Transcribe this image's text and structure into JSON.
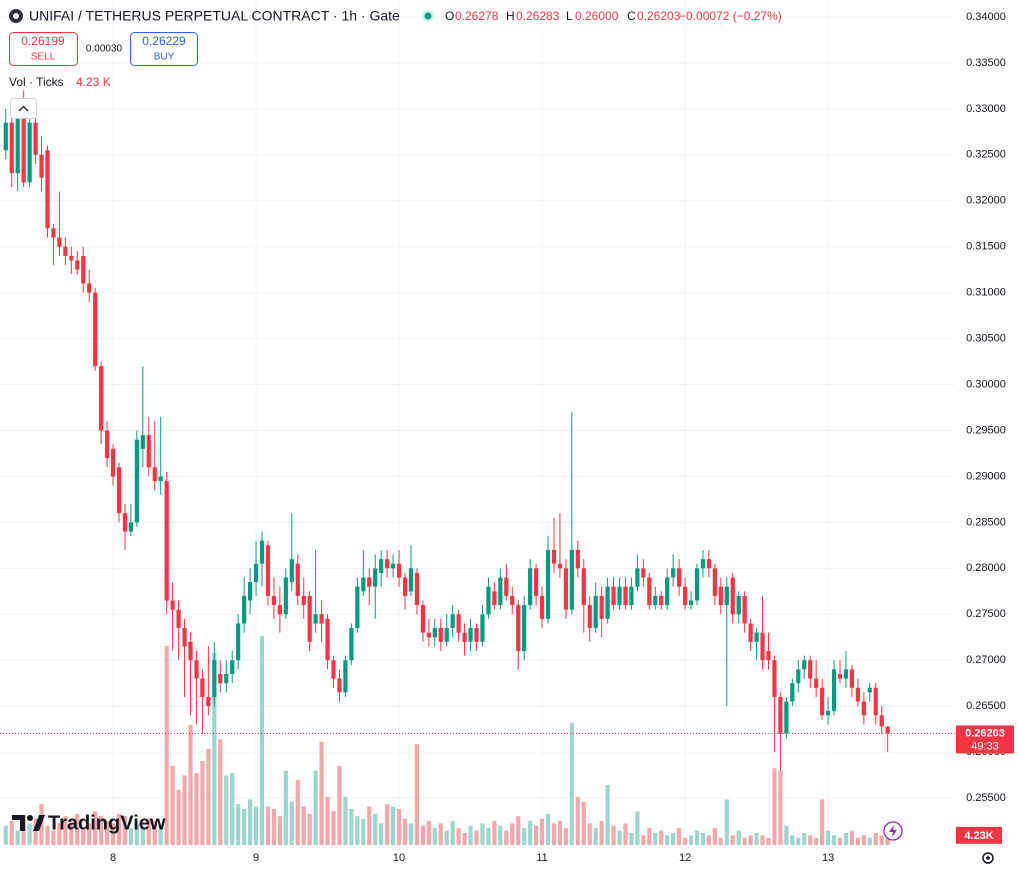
{
  "header": {
    "title": "UNIFAI / TETHERUS PERPETUAL CONTRACT · 1h · Gate",
    "o_label": "O",
    "o": "0.26278",
    "h_label": "H",
    "h": "0.26283",
    "l_label": "L",
    "l": "0.26000",
    "c_label": "C",
    "c": "0.26203",
    "change": "−0.00072 (−0.27%)"
  },
  "trade": {
    "sell_price": "0.26199",
    "sell": "SELL",
    "spread": "0.00030",
    "buy_price": "0.26229",
    "buy": "BUY"
  },
  "volume_legend": {
    "label": "Vol · Ticks",
    "value": "4.23 K"
  },
  "logo": "TradingView",
  "chart_data": {
    "type": "candlestick",
    "up_color": "#089981",
    "down_color": "#f23645",
    "volume_up_color": "#9dd6cd",
    "volume_down_color": "#f5a8ab",
    "xlim": [
      -0.97,
      159.3
    ],
    "xticks": [
      {
        "value": 18,
        "label": "8"
      },
      {
        "value": 42,
        "label": "9"
      },
      {
        "value": 66,
        "label": "10"
      },
      {
        "value": 90,
        "label": "11"
      },
      {
        "value": 114,
        "label": "12"
      },
      {
        "value": 138,
        "label": "13"
      }
    ],
    "ylim": [
      0.24989,
      0.34185
    ],
    "yticks": [
      {
        "value": 0.34,
        "label": "0.34000"
      },
      {
        "value": 0.335,
        "label": "0.33500"
      },
      {
        "value": 0.33,
        "label": "0.33000"
      },
      {
        "value": 0.325,
        "label": "0.32500"
      },
      {
        "value": 0.32,
        "label": "0.32000"
      },
      {
        "value": 0.315,
        "label": "0.31500"
      },
      {
        "value": 0.31,
        "label": "0.31000"
      },
      {
        "value": 0.305,
        "label": "0.30500"
      },
      {
        "value": 0.3,
        "label": "0.30000"
      },
      {
        "value": 0.295,
        "label": "0.29500"
      },
      {
        "value": 0.29,
        "label": "0.29000"
      },
      {
        "value": 0.285,
        "label": "0.28500"
      },
      {
        "value": 0.28,
        "label": "0.28000"
      },
      {
        "value": 0.275,
        "label": "0.27500"
      },
      {
        "value": 0.27,
        "label": "0.27000"
      },
      {
        "value": 0.265,
        "label": "0.26500"
      },
      {
        "value": 0.26,
        "label": "0.26000"
      },
      {
        "value": 0.255,
        "label": "0.25500"
      }
    ],
    "grid": true,
    "y2lim": [
      0,
      352
    ],
    "candles": [
      [
        0.3255,
        0.33,
        0.3245,
        0.3285
      ],
      [
        0.3285,
        0.331,
        0.3215,
        0.323
      ],
      [
        0.323,
        0.3305,
        0.321,
        0.3295
      ],
      [
        0.3295,
        0.332,
        0.3215,
        0.322
      ],
      [
        0.322,
        0.3295,
        0.3215,
        0.3285
      ],
      [
        0.3285,
        0.3295,
        0.324,
        0.325
      ],
      [
        0.325,
        0.327,
        0.321,
        0.3225
      ],
      [
        0.3255,
        0.326,
        0.316,
        0.317
      ],
      [
        0.317,
        0.3175,
        0.313,
        0.316
      ],
      [
        0.316,
        0.321,
        0.314,
        0.315
      ],
      [
        0.315,
        0.316,
        0.313,
        0.314
      ],
      [
        0.314,
        0.315,
        0.312,
        0.3135
      ],
      [
        0.3135,
        0.3145,
        0.312,
        0.3125
      ],
      [
        0.314,
        0.315,
        0.31,
        0.311
      ],
      [
        0.311,
        0.3125,
        0.309,
        0.31
      ],
      [
        0.31,
        0.3105,
        0.3015,
        0.302
      ],
      [
        0.302,
        0.3025,
        0.2935,
        0.295
      ],
      [
        0.295,
        0.296,
        0.291,
        0.292
      ],
      [
        0.293,
        0.2935,
        0.289,
        0.29
      ],
      [
        0.291,
        0.2915,
        0.285,
        0.286
      ],
      [
        0.286,
        0.287,
        0.282,
        0.284
      ],
      [
        0.284,
        0.287,
        0.2835,
        0.285
      ],
      [
        0.285,
        0.295,
        0.2845,
        0.294
      ],
      [
        0.293,
        0.302,
        0.291,
        0.2945
      ],
      [
        0.2945,
        0.2965,
        0.29,
        0.291
      ],
      [
        0.291,
        0.296,
        0.2885,
        0.2895
      ],
      [
        0.2895,
        0.2965,
        0.288,
        0.29
      ],
      [
        0.2895,
        0.2905,
        0.275,
        0.2765
      ],
      [
        0.2765,
        0.2785,
        0.271,
        0.2755
      ],
      [
        0.2755,
        0.2765,
        0.27,
        0.2735
      ],
      [
        0.2735,
        0.2745,
        0.266,
        0.2715
      ],
      [
        0.272,
        0.273,
        0.264,
        0.27
      ],
      [
        0.27,
        0.271,
        0.263,
        0.268
      ],
      [
        0.268,
        0.269,
        0.262,
        0.266
      ],
      [
        0.266,
        0.2715,
        0.264,
        0.265
      ],
      [
        0.266,
        0.272,
        0.265,
        0.27
      ],
      [
        0.2685,
        0.27,
        0.2665,
        0.2675
      ],
      [
        0.2675,
        0.27,
        0.2665,
        0.2685
      ],
      [
        0.2685,
        0.271,
        0.2675,
        0.27
      ],
      [
        0.27,
        0.275,
        0.269,
        0.274
      ],
      [
        0.274,
        0.279,
        0.273,
        0.277
      ],
      [
        0.2765,
        0.28,
        0.275,
        0.2785
      ],
      [
        0.2785,
        0.283,
        0.277,
        0.2805
      ],
      [
        0.2805,
        0.284,
        0.278,
        0.283
      ],
      [
        0.2825,
        0.283,
        0.276,
        0.277
      ],
      [
        0.277,
        0.279,
        0.2745,
        0.276
      ],
      [
        0.276,
        0.278,
        0.273,
        0.275
      ],
      [
        0.275,
        0.28,
        0.2745,
        0.279
      ],
      [
        0.2785,
        0.286,
        0.2775,
        0.281
      ],
      [
        0.2805,
        0.2815,
        0.276,
        0.277
      ],
      [
        0.277,
        0.279,
        0.2745,
        0.276
      ],
      [
        0.277,
        0.2775,
        0.271,
        0.272
      ],
      [
        0.274,
        0.282,
        0.273,
        0.275
      ],
      [
        0.275,
        0.2765,
        0.272,
        0.274
      ],
      [
        0.2745,
        0.275,
        0.269,
        0.27
      ],
      [
        0.27,
        0.2705,
        0.267,
        0.268
      ],
      [
        0.268,
        0.269,
        0.2655,
        0.2665
      ],
      [
        0.2665,
        0.2705,
        0.266,
        0.27
      ],
      [
        0.27,
        0.274,
        0.2695,
        0.2735
      ],
      [
        0.2735,
        0.279,
        0.273,
        0.278
      ],
      [
        0.2775,
        0.282,
        0.277,
        0.279
      ],
      [
        0.279,
        0.28,
        0.276,
        0.278
      ],
      [
        0.278,
        0.2815,
        0.2745,
        0.28
      ],
      [
        0.2795,
        0.282,
        0.278,
        0.281
      ],
      [
        0.281,
        0.282,
        0.279,
        0.28
      ],
      [
        0.28,
        0.2815,
        0.279,
        0.2805
      ],
      [
        0.2805,
        0.282,
        0.278,
        0.279
      ],
      [
        0.279,
        0.2795,
        0.2755,
        0.277
      ],
      [
        0.2775,
        0.2825,
        0.277,
        0.28
      ],
      [
        0.2795,
        0.28,
        0.275,
        0.276
      ],
      [
        0.276,
        0.2765,
        0.272,
        0.273
      ],
      [
        0.273,
        0.2745,
        0.2715,
        0.2725
      ],
      [
        0.2725,
        0.2745,
        0.2715,
        0.2735
      ],
      [
        0.2735,
        0.2745,
        0.271,
        0.272
      ],
      [
        0.272,
        0.275,
        0.2715,
        0.2735
      ],
      [
        0.2735,
        0.276,
        0.2725,
        0.275
      ],
      [
        0.275,
        0.2755,
        0.272,
        0.273
      ],
      [
        0.273,
        0.274,
        0.2705,
        0.272
      ],
      [
        0.272,
        0.2745,
        0.271,
        0.2735
      ],
      [
        0.2735,
        0.274,
        0.271,
        0.272
      ],
      [
        0.272,
        0.276,
        0.2715,
        0.275
      ],
      [
        0.275,
        0.279,
        0.2745,
        0.278
      ],
      [
        0.2775,
        0.2785,
        0.2755,
        0.276
      ],
      [
        0.276,
        0.28,
        0.2755,
        0.279
      ],
      [
        0.279,
        0.2805,
        0.2765,
        0.277
      ],
      [
        0.277,
        0.278,
        0.275,
        0.276
      ],
      [
        0.276,
        0.2765,
        0.269,
        0.271
      ],
      [
        0.271,
        0.277,
        0.27,
        0.276
      ],
      [
        0.276,
        0.281,
        0.2755,
        0.28
      ],
      [
        0.28,
        0.2805,
        0.276,
        0.277
      ],
      [
        0.277,
        0.278,
        0.2735,
        0.2745
      ],
      [
        0.2745,
        0.2835,
        0.274,
        0.282
      ],
      [
        0.282,
        0.2855,
        0.2795,
        0.2805
      ],
      [
        0.2805,
        0.286,
        0.279,
        0.28
      ],
      [
        0.28,
        0.281,
        0.2745,
        0.2755
      ],
      [
        0.2755,
        0.297,
        0.275,
        0.282
      ],
      [
        0.282,
        0.283,
        0.279,
        0.28
      ],
      [
        0.28,
        0.281,
        0.273,
        0.276
      ],
      [
        0.276,
        0.277,
        0.272,
        0.2735
      ],
      [
        0.2735,
        0.2785,
        0.273,
        0.277
      ],
      [
        0.277,
        0.278,
        0.2725,
        0.2745
      ],
      [
        0.2745,
        0.279,
        0.274,
        0.278
      ],
      [
        0.278,
        0.279,
        0.2755,
        0.276
      ],
      [
        0.276,
        0.279,
        0.2755,
        0.278
      ],
      [
        0.278,
        0.279,
        0.2755,
        0.276
      ],
      [
        0.276,
        0.279,
        0.2755,
        0.278
      ],
      [
        0.278,
        0.2815,
        0.2775,
        0.28
      ],
      [
        0.28,
        0.281,
        0.278,
        0.279
      ],
      [
        0.279,
        0.2795,
        0.2755,
        0.276
      ],
      [
        0.276,
        0.278,
        0.2755,
        0.277
      ],
      [
        0.277,
        0.2775,
        0.2755,
        0.276
      ],
      [
        0.276,
        0.28,
        0.2755,
        0.279
      ],
      [
        0.279,
        0.2815,
        0.278,
        0.28
      ],
      [
        0.28,
        0.281,
        0.277,
        0.278
      ],
      [
        0.278,
        0.279,
        0.2755,
        0.276
      ],
      [
        0.276,
        0.2775,
        0.2755,
        0.2765
      ],
      [
        0.2765,
        0.2805,
        0.276,
        0.28
      ],
      [
        0.28,
        0.282,
        0.279,
        0.281
      ],
      [
        0.281,
        0.282,
        0.279,
        0.28
      ],
      [
        0.28,
        0.2805,
        0.276,
        0.277
      ],
      [
        0.278,
        0.279,
        0.275,
        0.276
      ],
      [
        0.276,
        0.279,
        0.265,
        0.278
      ],
      [
        0.279,
        0.2795,
        0.274,
        0.275
      ],
      [
        0.275,
        0.2775,
        0.274,
        0.277
      ],
      [
        0.277,
        0.2775,
        0.273,
        0.274
      ],
      [
        0.274,
        0.2745,
        0.271,
        0.272
      ],
      [
        0.272,
        0.2735,
        0.27,
        0.273
      ],
      [
        0.273,
        0.277,
        0.269,
        0.27
      ],
      [
        0.271,
        0.273,
        0.269,
        0.27
      ],
      [
        0.27,
        0.2705,
        0.26,
        0.266
      ],
      [
        0.266,
        0.2665,
        0.258,
        0.262
      ],
      [
        0.262,
        0.266,
        0.2615,
        0.2655
      ],
      [
        0.2655,
        0.268,
        0.265,
        0.2675
      ],
      [
        0.2675,
        0.27,
        0.2665,
        0.269
      ],
      [
        0.269,
        0.2705,
        0.268,
        0.27
      ],
      [
        0.27,
        0.2705,
        0.267,
        0.268
      ],
      [
        0.268,
        0.27,
        0.266,
        0.267
      ],
      [
        0.267,
        0.268,
        0.2635,
        0.264
      ],
      [
        0.264,
        0.266,
        0.263,
        0.2645
      ],
      [
        0.2645,
        0.27,
        0.264,
        0.269
      ],
      [
        0.2685,
        0.27,
        0.2675,
        0.268
      ],
      [
        0.268,
        0.271,
        0.267,
        0.269
      ],
      [
        0.269,
        0.2695,
        0.266,
        0.267
      ],
      [
        0.267,
        0.268,
        0.265,
        0.2655
      ],
      [
        0.2655,
        0.2665,
        0.263,
        0.264
      ],
      [
        0.2665,
        0.2675,
        0.2655,
        0.267
      ],
      [
        0.267,
        0.2675,
        0.263,
        0.264
      ],
      [
        0.264,
        0.265,
        0.262,
        0.2628
      ],
      [
        0.26278,
        0.26283,
        0.26,
        0.26203
      ]
    ],
    "volumes": [
      8,
      10,
      6,
      12,
      9,
      11,
      17,
      8,
      6,
      9,
      12,
      10,
      13,
      7,
      9,
      14,
      12,
      10,
      9,
      13,
      12,
      7,
      9,
      8,
      11,
      10,
      9,
      83,
      33,
      23,
      29,
      50,
      30,
      35,
      40,
      80,
      44,
      29,
      30,
      17,
      15,
      19,
      16,
      87,
      16,
      15,
      12,
      31,
      18,
      27,
      16,
      13,
      31,
      43,
      20,
      14,
      33,
      20,
      15,
      12,
      11,
      16,
      13,
      9,
      17,
      16,
      15,
      11,
      9,
      42,
      8,
      10,
      7,
      9,
      6,
      10,
      7,
      5,
      8,
      6,
      9,
      7,
      10,
      8,
      6,
      9,
      12,
      7,
      10,
      8,
      11,
      13,
      9,
      10,
      7,
      51,
      20,
      18,
      9,
      7,
      10,
      25,
      8,
      6,
      9,
      5,
      14,
      4,
      7,
      5,
      6,
      4,
      5,
      7,
      3,
      4,
      6,
      5,
      4,
      7,
      3,
      19,
      4,
      6,
      3,
      4,
      5,
      4,
      3,
      32,
      31,
      8,
      4,
      3,
      5,
      4,
      3,
      19,
      6,
      4,
      3,
      5,
      6,
      3,
      4,
      3,
      5,
      4,
      4.23
    ],
    "price_tag": "0.26203",
    "countdown": "49:33",
    "volume_tag": "4.23K"
  }
}
